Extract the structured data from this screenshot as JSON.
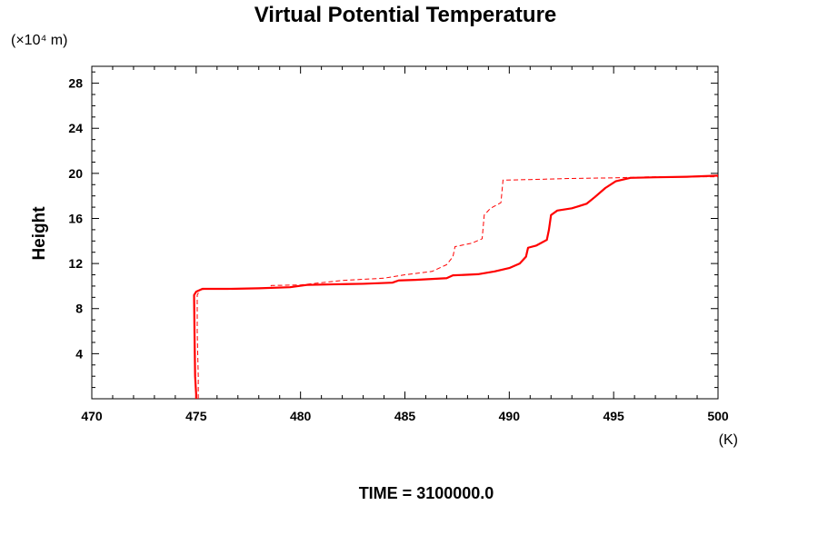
{
  "chart_data": {
    "type": "line",
    "title": "Virtual Potential Temperature",
    "y_unit": "(×10⁴ m)",
    "x_unit": "(K)",
    "ylabel": "Height",
    "xlabel": "",
    "xlim": [
      470,
      500
    ],
    "ylim": [
      0,
      29.5
    ],
    "x_ticks": [
      470,
      475,
      480,
      485,
      490,
      495,
      500
    ],
    "y_ticks": [
      4,
      8,
      12,
      16,
      20,
      24,
      28
    ],
    "grid": false,
    "footer": "TIME = 3100000.0",
    "series": [
      {
        "style": "solid",
        "color": "#ff0000",
        "points": [
          [
            475.0,
            0
          ],
          [
            475.0,
            0.4
          ],
          [
            474.95,
            2.0
          ],
          [
            474.92,
            6.0
          ],
          [
            474.9,
            9.2
          ],
          [
            475.0,
            9.5
          ],
          [
            475.3,
            9.75
          ],
          [
            476.5,
            9.75
          ],
          [
            478.0,
            9.8
          ],
          [
            479.5,
            9.9
          ],
          [
            480.3,
            10.1
          ],
          [
            481.5,
            10.15
          ],
          [
            483.0,
            10.2
          ],
          [
            484.4,
            10.3
          ],
          [
            484.7,
            10.5
          ],
          [
            485.5,
            10.55
          ],
          [
            486.5,
            10.65
          ],
          [
            487.0,
            10.7
          ],
          [
            487.3,
            10.95
          ],
          [
            488.5,
            11.05
          ],
          [
            489.3,
            11.3
          ],
          [
            490.0,
            11.6
          ],
          [
            490.5,
            12.0
          ],
          [
            490.8,
            12.6
          ],
          [
            490.9,
            13.4
          ],
          [
            491.3,
            13.6
          ],
          [
            491.8,
            14.1
          ],
          [
            491.9,
            15.0
          ],
          [
            492.0,
            16.3
          ],
          [
            492.3,
            16.7
          ],
          [
            493.0,
            16.9
          ],
          [
            493.7,
            17.3
          ],
          [
            494.1,
            17.9
          ],
          [
            494.6,
            18.7
          ],
          [
            495.1,
            19.3
          ],
          [
            495.8,
            19.6
          ],
          [
            497.0,
            19.65
          ],
          [
            498.5,
            19.7
          ],
          [
            500.0,
            19.8
          ]
        ]
      },
      {
        "style": "dashed",
        "color": "#ff0000",
        "points": [
          [
            475.1,
            0
          ],
          [
            475.1,
            2.0
          ],
          [
            475.05,
            6.0
          ],
          [
            475.05,
            9.2
          ],
          [
            475.2,
            9.7
          ],
          [
            476.5,
            9.75
          ],
          [
            478.5,
            9.8
          ],
          [
            478.6,
            10.05
          ],
          [
            480.0,
            10.1
          ],
          [
            482.0,
            10.5
          ],
          [
            484.0,
            10.7
          ],
          [
            485.0,
            11.0
          ],
          [
            486.3,
            11.3
          ],
          [
            487.0,
            11.9
          ],
          [
            487.3,
            12.6
          ],
          [
            487.4,
            13.5
          ],
          [
            488.2,
            13.8
          ],
          [
            488.7,
            14.2
          ],
          [
            488.8,
            16.3
          ],
          [
            489.1,
            16.9
          ],
          [
            489.6,
            17.4
          ],
          [
            489.7,
            19.4
          ],
          [
            491.0,
            19.45
          ],
          [
            493.0,
            19.55
          ],
          [
            495.0,
            19.6
          ],
          [
            497.0,
            19.7
          ],
          [
            500.0,
            19.7
          ]
        ]
      }
    ]
  }
}
